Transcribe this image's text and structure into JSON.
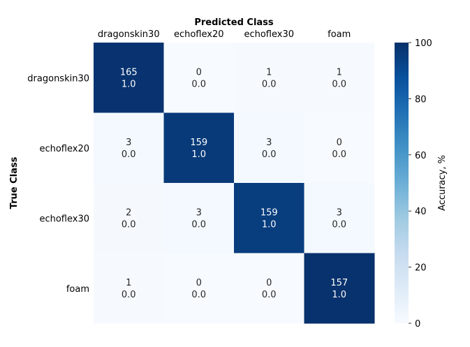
{
  "chart_data": {
    "type": "heatmap",
    "title": "",
    "x_axis_title": "Predicted Class",
    "y_axis_title": "True Class",
    "x_categories": [
      "dragonskin30",
      "echoflex20",
      "echoflex30",
      "foam"
    ],
    "y_categories": [
      "dragonskin30",
      "echoflex20",
      "echoflex30",
      "foam"
    ],
    "counts": [
      [
        165,
        0,
        1,
        1
      ],
      [
        3,
        159,
        3,
        0
      ],
      [
        2,
        3,
        159,
        3
      ],
      [
        1,
        0,
        0,
        157
      ]
    ],
    "fractions": [
      [
        "1.0",
        "0.0",
        "0.0",
        "0.0"
      ],
      [
        "0.0",
        "1.0",
        "0.0",
        "0.0"
      ],
      [
        "0.0",
        "0.0",
        "1.0",
        "0.0"
      ],
      [
        "0.0",
        "0.0",
        "0.0",
        "1.0"
      ]
    ],
    "color_values": [
      [
        98.8,
        0.0,
        0.6,
        0.6
      ],
      [
        1.8,
        96.4,
        1.8,
        0.0
      ],
      [
        1.2,
        1.8,
        95.2,
        1.8
      ],
      [
        0.6,
        0.0,
        0.0,
        99.4
      ]
    ],
    "colorbar": {
      "label": "Accuracy, %",
      "min": 0,
      "max": 100,
      "ticks": [
        "0",
        "20",
        "40",
        "60",
        "80",
        "100"
      ],
      "colormap": "Blues",
      "colors": [
        "#f7fbff",
        "#deebf7",
        "#c6dbef",
        "#9ecae1",
        "#6baed6",
        "#4292c6",
        "#2171b5",
        "#08519c",
        "#08306b"
      ]
    }
  }
}
